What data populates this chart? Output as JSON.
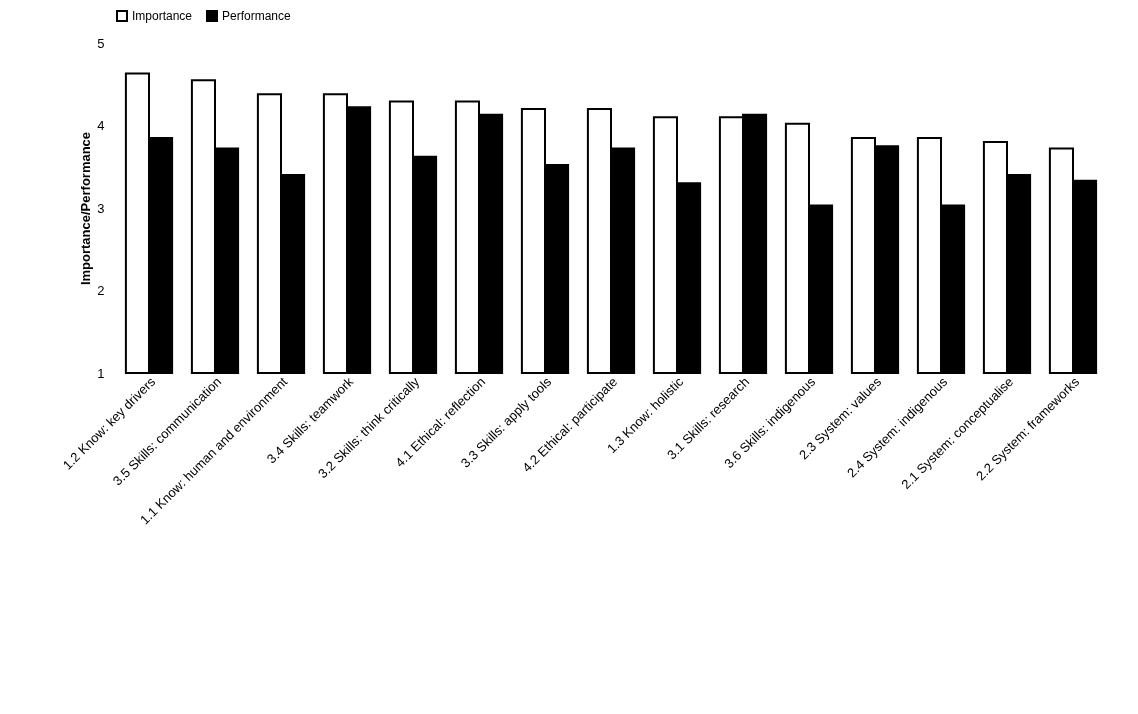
{
  "chart_data": {
    "type": "bar",
    "ylabel": "Importance/Performance",
    "categories": [
      "1.2 Know: key drivers",
      "3.5 Skills: communication",
      "1.1 Know: human and environment",
      "3.4 Skills: teamwork",
      "3.2 Skills: think critically",
      "4.1 Ethical: reflection",
      "3.3 Skills: apply tools",
      "4.2 Ethical: participate",
      "1.3 Know: holistic",
      "3.1 Skills: research",
      "3.6 Skills: indigenous",
      "2.3 System: values",
      "2.4 System: indigenous",
      "2.1 System: conceptualise",
      "2.2 System: frameworks"
    ],
    "series": [
      {
        "name": "Importance",
        "color": "#ffffff",
        "values": [
          4.63,
          4.55,
          4.38,
          4.38,
          4.29,
          4.29,
          4.2,
          4.2,
          4.1,
          4.1,
          4.02,
          3.85,
          3.85,
          3.8,
          3.72
        ]
      },
      {
        "name": "Performance",
        "color": "#000000",
        "values": [
          3.85,
          3.72,
          3.4,
          4.22,
          3.62,
          4.13,
          3.52,
          3.72,
          3.3,
          4.13,
          3.03,
          3.75,
          3.03,
          3.4,
          3.33
        ]
      }
    ],
    "ylim": [
      1,
      5
    ],
    "yticks": [
      1,
      2,
      3,
      4,
      5
    ],
    "grid": false,
    "legend": "top"
  }
}
